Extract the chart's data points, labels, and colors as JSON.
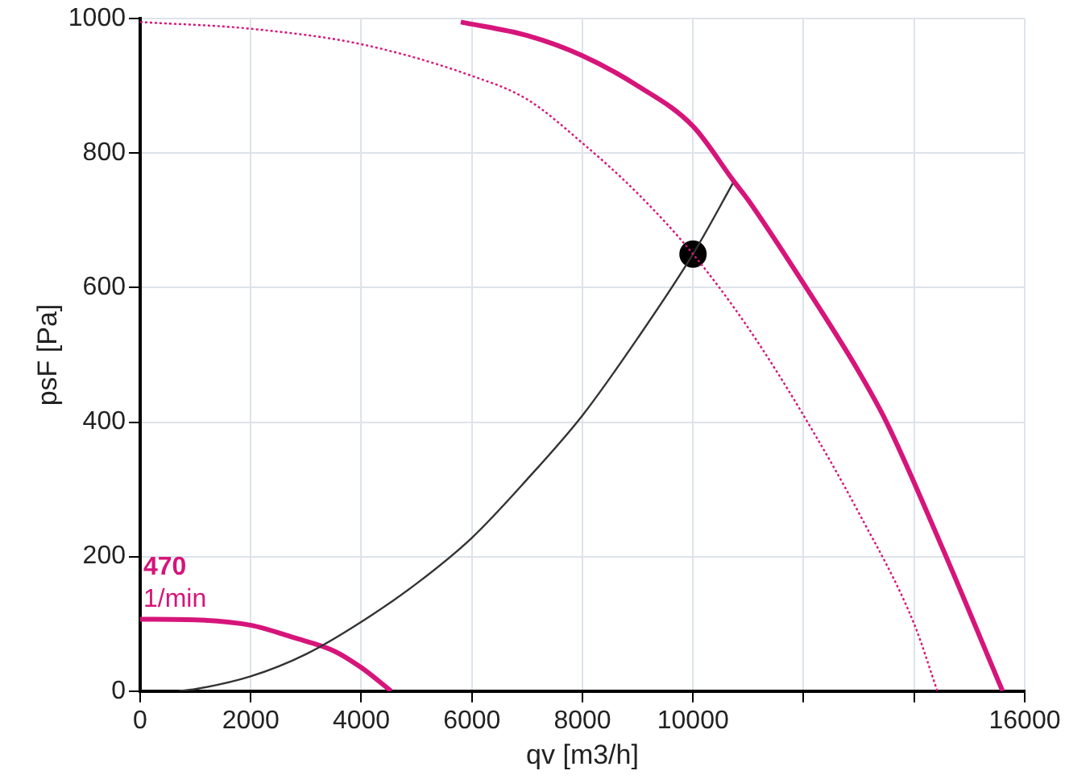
{
  "chart_data": {
    "type": "line",
    "xlabel": "qv [m3/h]",
    "ylabel": "psF [Pa]",
    "xlim": [
      0,
      16000
    ],
    "ylim": [
      0,
      1000
    ],
    "xticks": [
      0,
      2000,
      4000,
      6000,
      8000,
      10000,
      {
        "value": 12000,
        "label": null
      },
      {
        "value": 14000,
        "label": null
      },
      16000
    ],
    "yticks": [
      0,
      200,
      400,
      600,
      800,
      1000
    ],
    "grid": true,
    "legend": false,
    "marker": "none",
    "annotations": [
      "470",
      "1/min"
    ],
    "series": [
      {
        "color": "#d6157a",
        "line_style": "solid",
        "x": [
          5800,
          7000,
          8000,
          9000,
          10000,
          10740,
          11000,
          12000,
          13000,
          13500,
          14500,
          15600
        ],
        "values": [
          995,
          975,
          945,
          900,
          840,
          758,
          730,
          606,
          475,
          400,
          215,
          0
        ]
      },
      {
        "color": "#d6157a",
        "line_style": "dotted",
        "x": [
          0,
          2000,
          4000,
          6000,
          7000,
          8000,
          9000,
          10000,
          11000,
          12000,
          13000,
          14000,
          14420
        ],
        "values": [
          995,
          985,
          962,
          915,
          880,
          815,
          740,
          650,
          540,
          410,
          265,
          100,
          0
        ]
      },
      {
        "color": "#333333",
        "line_style": "solid",
        "x": [
          700,
          1000,
          2000,
          3000,
          4000,
          5000,
          6000,
          7000,
          8000,
          9000,
          10000,
          10740
        ],
        "values": [
          0,
          3,
          22,
          55,
          103,
          160,
          228,
          315,
          410,
          525,
          650,
          758
        ]
      },
      {
        "color": "#d6157a",
        "line_style": "solid",
        "x": [
          0,
          1000,
          2000,
          2760,
          3500,
          4000,
          4540
        ],
        "values": [
          107,
          106,
          98,
          80,
          60,
          35,
          0
        ]
      },
      {
        "type": "scatter",
        "color": "#000000",
        "marker": "circle",
        "x": [
          10000
        ],
        "values": [
          650
        ]
      }
    ]
  }
}
